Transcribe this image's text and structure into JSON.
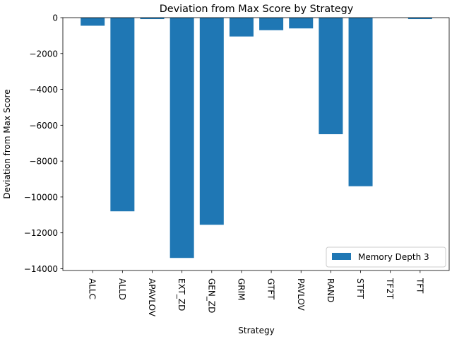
{
  "chart_data": {
    "type": "bar",
    "title": "Deviation from Max Score by Strategy",
    "xlabel": "Strategy",
    "ylabel": "Deviation from Max Score",
    "categories": [
      "ALLC",
      "ALLD",
      "APAVLOV",
      "EXT_ZD",
      "GEN_ZD",
      "GRIM",
      "GTFT",
      "PAVLOV",
      "RAND",
      "STFT",
      "TF2T",
      "TFT"
    ],
    "series": [
      {
        "name": "Memory Depth 3",
        "values": [
          -450,
          -10800,
          -80,
          -13400,
          -11550,
          -1050,
          -700,
          -600,
          -6500,
          -9400,
          0,
          -80
        ]
      }
    ],
    "ylim": [
      -14100,
      0
    ],
    "yticks": [
      0,
      -2000,
      -4000,
      -6000,
      -8000,
      -10000,
      -12000,
      -14000
    ],
    "ytick_labels": [
      "0",
      "−2000",
      "−4000",
      "−6000",
      "−8000",
      "−10000",
      "−12000",
      "−14000"
    ],
    "grid": false,
    "legend_position": "lower-right",
    "bar_color": "#1f77b4"
  }
}
